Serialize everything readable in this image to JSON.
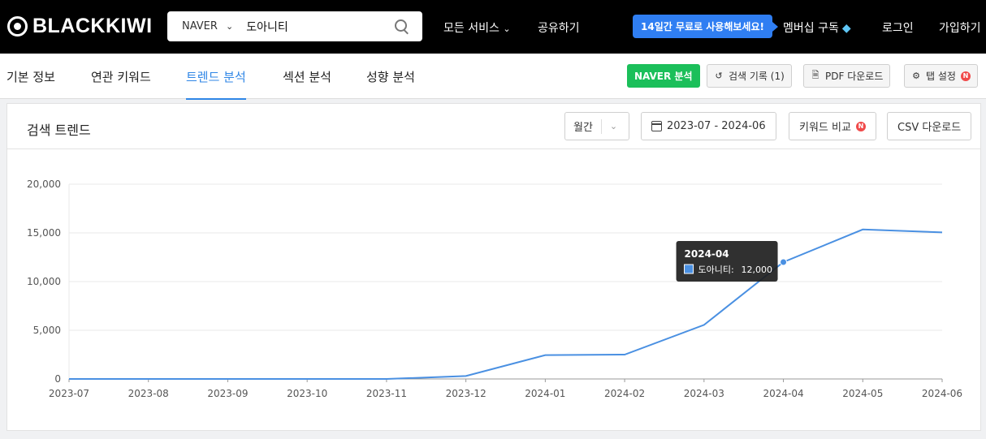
{
  "header": {
    "brand": "BLACKKIWI",
    "platform": "NAVER",
    "search_value": "도아니티",
    "nav_all_services": "모든 서비스",
    "nav_share": "공유하기",
    "promo": "14일간 무료로 사용해보세요!",
    "membership": "멤버십 구독",
    "login": "로그인",
    "signup": "가입하기"
  },
  "tabs": [
    {
      "label": "기본 정보",
      "active": false
    },
    {
      "label": "연관 키워드",
      "active": false
    },
    {
      "label": "트렌드 분석",
      "active": true
    },
    {
      "label": "섹션 분석",
      "active": false
    },
    {
      "label": "성향 분석",
      "active": false
    }
  ],
  "toolbar": {
    "naver_analysis": "NAVER 분석",
    "search_history": "검색 기록 (1)",
    "pdf_download": "PDF 다운로드",
    "tab_settings": "탭 설정",
    "badge": "N"
  },
  "card": {
    "title": "검색 트렌드",
    "period_select": "월간",
    "date_range": "2023-07 - 2024-06",
    "keyword_compare": "키워드 비교",
    "csv_download": "CSV 다운로드"
  },
  "chart_data": {
    "type": "line",
    "x": [
      "2023-07",
      "2023-08",
      "2023-09",
      "2023-10",
      "2023-11",
      "2023-12",
      "2024-01",
      "2024-02",
      "2024-03",
      "2024-04",
      "2024-05",
      "2024-06"
    ],
    "series": [
      {
        "name": "도아니티",
        "values": [
          0,
          0,
          0,
          0,
          0,
          300,
          2450,
          2500,
          5550,
          12000,
          15350,
          15050
        ],
        "color": "#4a90e2"
      }
    ],
    "y_ticks": [
      "0",
      "5,000",
      "10,000",
      "15,000",
      "20,000"
    ],
    "ylim": [
      0,
      20000
    ],
    "grid": true,
    "tooltip": {
      "title": "2024-04",
      "label": "도아니티:",
      "value": "12,000"
    }
  }
}
